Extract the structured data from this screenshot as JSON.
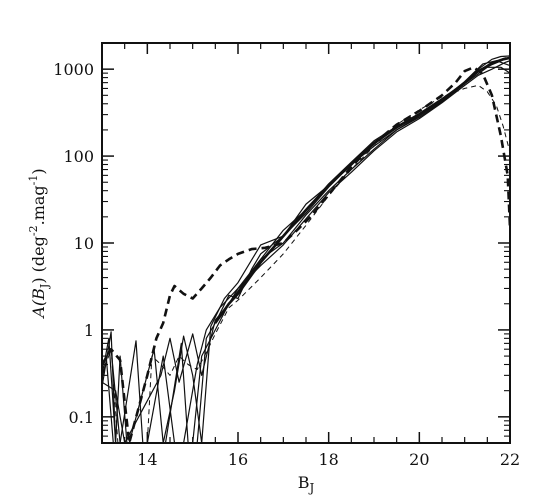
{
  "chart_data": {
    "type": "line",
    "title": "",
    "xlabel": "B",
    "xlabel_sub": "J",
    "ylabel_parts": {
      "a": "A(B",
      "a_sub": "J",
      "b": ")  (deg",
      "b_sup": "-2",
      "c": ".mag",
      "c_sup": "-1",
      "d": ")"
    },
    "xlim": [
      13,
      22
    ],
    "ylim": [
      0.05,
      2000
    ],
    "yscale": "log",
    "grid": false,
    "legend": "none",
    "x_ticks": [
      14,
      16,
      18,
      20,
      22
    ],
    "x_tick_labels": [
      "14",
      "16",
      "18",
      "20",
      "22"
    ],
    "x_minor_ticks": [
      13.5,
      14.5,
      15,
      15.5,
      16.5,
      17,
      17.5,
      18.5,
      19,
      19.5,
      20.5,
      21,
      21.5
    ],
    "y_ticks": [
      0.1,
      1,
      10,
      100,
      1000
    ],
    "y_tick_labels": [
      "0.1",
      "1",
      "10",
      "100",
      "1000"
    ],
    "series": [
      {
        "style": "solid",
        "width": 1.2,
        "points": [
          [
            13.0,
            0.22
          ],
          [
            13.2,
            0.95
          ],
          [
            13.3,
            0.05
          ],
          [
            13.4,
            0.5
          ],
          [
            13.55,
            0.05
          ],
          [
            13.7,
            0.05
          ],
          [
            14.0,
            0.05
          ],
          [
            14.3,
            0.05
          ],
          [
            14.5,
            0.05
          ],
          [
            14.7,
            0.05
          ],
          [
            15.0,
            0.05
          ],
          [
            15.2,
            0.5
          ],
          [
            15.5,
            1.0
          ],
          [
            15.8,
            2.0
          ],
          [
            16.0,
            3.0
          ],
          [
            16.5,
            6.5
          ],
          [
            17.0,
            14
          ],
          [
            17.5,
            24
          ],
          [
            18.0,
            48
          ],
          [
            18.5,
            85
          ],
          [
            19.0,
            150
          ],
          [
            19.5,
            220
          ],
          [
            20.0,
            310
          ],
          [
            20.5,
            460
          ],
          [
            21.0,
            700
          ],
          [
            21.3,
            1000
          ],
          [
            21.6,
            1300
          ],
          [
            21.8,
            1400
          ],
          [
            22.0,
            1420
          ]
        ]
      },
      {
        "style": "solid",
        "width": 1.2,
        "points": [
          [
            13.0,
            0.28
          ],
          [
            13.1,
            0.45
          ],
          [
            13.25,
            0.05
          ],
          [
            13.4,
            0.05
          ],
          [
            13.75,
            0.75
          ],
          [
            13.9,
            0.05
          ],
          [
            14.0,
            0.05
          ],
          [
            14.4,
            0.05
          ],
          [
            14.75,
            0.7
          ],
          [
            14.9,
            0.05
          ],
          [
            15.1,
            0.05
          ],
          [
            15.3,
            0.8
          ],
          [
            15.5,
            1.2
          ],
          [
            15.8,
            2.5
          ],
          [
            16.0,
            2.3
          ],
          [
            16.3,
            5.0
          ],
          [
            16.5,
            7.5
          ],
          [
            17.0,
            12
          ],
          [
            17.5,
            28
          ],
          [
            18.0,
            46
          ],
          [
            18.5,
            78
          ],
          [
            19.0,
            140
          ],
          [
            19.5,
            210
          ],
          [
            20.0,
            300
          ],
          [
            20.5,
            440
          ],
          [
            21.0,
            720
          ],
          [
            21.4,
            1150
          ],
          [
            21.7,
            1250
          ],
          [
            22.0,
            1100
          ]
        ]
      },
      {
        "style": "solid",
        "width": 1.2,
        "points": [
          [
            13.0,
            0.3
          ],
          [
            13.15,
            0.8
          ],
          [
            13.3,
            0.05
          ],
          [
            13.6,
            0.05
          ],
          [
            14.15,
            0.6
          ],
          [
            14.35,
            0.05
          ],
          [
            14.6,
            0.2
          ],
          [
            14.8,
            0.85
          ],
          [
            15.0,
            0.3
          ],
          [
            15.2,
            0.05
          ],
          [
            15.4,
            1.1
          ],
          [
            15.7,
            2.3
          ],
          [
            16.0,
            3.5
          ],
          [
            16.5,
            9.5
          ],
          [
            17.0,
            12
          ],
          [
            17.5,
            22
          ],
          [
            18.0,
            44
          ],
          [
            18.5,
            80
          ],
          [
            19.0,
            130
          ],
          [
            19.5,
            200
          ],
          [
            20.0,
            290
          ],
          [
            20.5,
            430
          ],
          [
            21.0,
            680
          ],
          [
            21.3,
            950
          ],
          [
            21.6,
            1200
          ],
          [
            21.9,
            1350
          ],
          [
            22.0,
            1300
          ]
        ]
      },
      {
        "style": "solid",
        "width": 1.2,
        "points": [
          [
            13.0,
            0.25
          ],
          [
            13.3,
            0.2
          ],
          [
            13.5,
            0.05
          ],
          [
            14.3,
            0.3
          ],
          [
            14.5,
            0.8
          ],
          [
            14.7,
            0.25
          ],
          [
            15.0,
            0.9
          ],
          [
            15.2,
            0.3
          ],
          [
            15.5,
            1.3
          ],
          [
            15.8,
            2.0
          ],
          [
            16.0,
            2.8
          ],
          [
            16.5,
            6.5
          ],
          [
            17.0,
            10
          ],
          [
            17.5,
            21
          ],
          [
            18.0,
            40
          ],
          [
            18.5,
            70
          ],
          [
            19.0,
            120
          ],
          [
            19.5,
            200
          ],
          [
            20.0,
            280
          ],
          [
            20.5,
            420
          ],
          [
            21.0,
            680
          ],
          [
            21.5,
            1050
          ],
          [
            21.8,
            1050
          ],
          [
            22.0,
            900
          ]
        ]
      },
      {
        "style": "solid",
        "width": 1.2,
        "points": [
          [
            13.0,
            0.4
          ],
          [
            13.2,
            0.6
          ],
          [
            13.4,
            0.05
          ],
          [
            14.0,
            0.05
          ],
          [
            14.35,
            0.5
          ],
          [
            14.6,
            0.05
          ],
          [
            14.8,
            0.05
          ],
          [
            15.1,
            0.4
          ],
          [
            15.3,
            1.0
          ],
          [
            15.6,
            1.8
          ],
          [
            16.0,
            3.0
          ],
          [
            16.5,
            5.5
          ],
          [
            17.0,
            9.5
          ],
          [
            17.5,
            19
          ],
          [
            18.0,
            38
          ],
          [
            18.5,
            65
          ],
          [
            19.0,
            115
          ],
          [
            19.5,
            190
          ],
          [
            20.0,
            270
          ],
          [
            20.5,
            410
          ],
          [
            21.0,
            650
          ],
          [
            21.3,
            850
          ],
          [
            21.6,
            1000
          ],
          [
            21.9,
            1200
          ],
          [
            22.0,
            1250
          ]
        ]
      },
      {
        "style": "thick",
        "width": 2.6,
        "points": [
          [
            15.5,
            1.2
          ],
          [
            15.8,
            2.0
          ],
          [
            16.0,
            2.6
          ],
          [
            16.5,
            6.0
          ],
          [
            17.0,
            12
          ],
          [
            17.5,
            24
          ],
          [
            18.0,
            46
          ],
          [
            18.5,
            82
          ],
          [
            19.0,
            140
          ],
          [
            19.5,
            215
          ],
          [
            20.0,
            300
          ],
          [
            20.5,
            440
          ],
          [
            21.0,
            700
          ],
          [
            21.3,
            950
          ],
          [
            21.6,
            1150
          ],
          [
            21.85,
            1300
          ],
          [
            22.0,
            1350
          ]
        ]
      },
      {
        "style": "dashed",
        "width": 1.0,
        "points": [
          [
            13.0,
            0.3
          ],
          [
            13.2,
            0.6
          ],
          [
            13.35,
            0.05
          ],
          [
            14.0,
            0.05
          ],
          [
            14.1,
            0.5
          ],
          [
            14.3,
            0.4
          ],
          [
            14.5,
            0.3
          ],
          [
            14.7,
            0.5
          ],
          [
            14.9,
            0.4
          ],
          [
            15.1,
            0.35
          ],
          [
            15.3,
            0.55
          ],
          [
            15.5,
            0.9
          ],
          [
            15.8,
            1.8
          ],
          [
            16.0,
            2.2
          ],
          [
            16.5,
            4.0
          ],
          [
            17.0,
            7.5
          ],
          [
            17.5,
            16
          ],
          [
            18.0,
            35
          ],
          [
            18.5,
            70
          ],
          [
            19.0,
            130
          ],
          [
            19.5,
            230
          ],
          [
            20.0,
            340
          ],
          [
            20.5,
            480
          ],
          [
            21.0,
            600
          ],
          [
            21.3,
            650
          ],
          [
            21.5,
            550
          ],
          [
            21.7,
            380
          ],
          [
            21.85,
            220
          ],
          [
            22.0,
            110
          ]
        ]
      },
      {
        "style": "dashed-bold",
        "width": 2.6,
        "points": [
          [
            13.0,
            0.4
          ],
          [
            13.2,
            0.6
          ],
          [
            13.4,
            0.45
          ],
          [
            13.6,
            0.05
          ],
          [
            14.0,
            0.3
          ],
          [
            14.2,
            0.8
          ],
          [
            14.35,
            1.2
          ],
          [
            14.5,
            2.5
          ],
          [
            14.6,
            3.2
          ],
          [
            14.8,
            2.6
          ],
          [
            15.0,
            2.3
          ],
          [
            15.2,
            3.0
          ],
          [
            15.4,
            4.0
          ],
          [
            15.6,
            5.5
          ],
          [
            15.8,
            6.5
          ],
          [
            16.0,
            7.5
          ],
          [
            16.3,
            8.5
          ],
          [
            16.6,
            8.8
          ],
          [
            17.0,
            10
          ],
          [
            17.3,
            14
          ],
          [
            17.6,
            20
          ],
          [
            18.0,
            36
          ],
          [
            18.5,
            75
          ],
          [
            19.0,
            140
          ],
          [
            19.5,
            230
          ],
          [
            20.0,
            330
          ],
          [
            20.5,
            500
          ],
          [
            20.8,
            700
          ],
          [
            21.0,
            950
          ],
          [
            21.2,
            1050
          ],
          [
            21.4,
            880
          ],
          [
            21.6,
            500
          ],
          [
            21.8,
            170
          ],
          [
            21.95,
            60
          ],
          [
            22.0,
            15
          ]
        ]
      }
    ]
  }
}
